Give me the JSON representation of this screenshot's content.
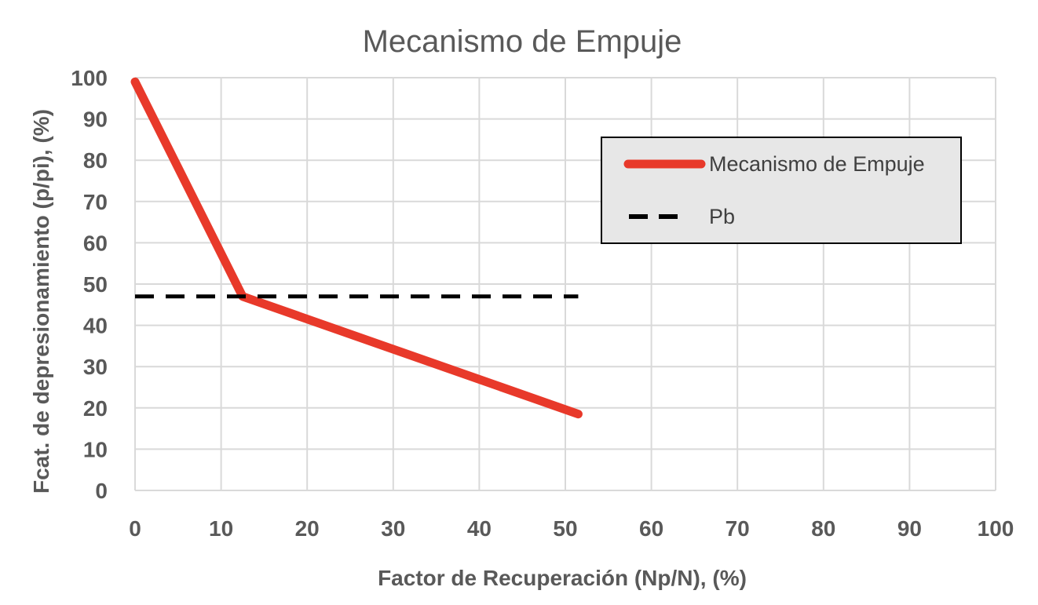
{
  "chart_data": {
    "type": "line",
    "title": "Mecanismo de Empuje",
    "xlabel": "Factor de Recuperación (Np/N), (%)",
    "ylabel": "Fcat. de depresionamiento (p/pi), (%)",
    "xlim": [
      0,
      100
    ],
    "ylim": [
      0,
      100
    ],
    "xticks": [
      "0",
      "10",
      "20",
      "30",
      "40",
      "50",
      "60",
      "70",
      "80",
      "90",
      "100"
    ],
    "yticks": [
      "0",
      "10",
      "20",
      "30",
      "40",
      "50",
      "60",
      "70",
      "80",
      "90",
      "100"
    ],
    "grid": true,
    "legend_position": "top-right",
    "series": [
      {
        "name": "Mecanismo de Empuje",
        "color": "#E8392A",
        "style": "solid",
        "x": [
          0,
          12.5,
          51.5
        ],
        "y": [
          99,
          47,
          18.5
        ]
      },
      {
        "name": "Pb",
        "color": "#000000",
        "style": "dashed",
        "x": [
          0,
          51.5
        ],
        "y": [
          47,
          47
        ]
      }
    ]
  }
}
